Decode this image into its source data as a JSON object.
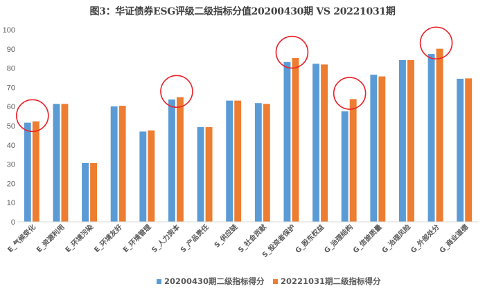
{
  "title": "图3：华证债券ESG评级二级指标分值20200430期 VS 20221031期",
  "colors": {
    "series1": "#5B9BD5",
    "series2": "#ED7D31",
    "highlight": "#E8232A",
    "axis": "#D9D9D9",
    "text": "#595959"
  },
  "legend": {
    "items": [
      {
        "label": "20200430期二级指标得分",
        "color": "#5B9BD5"
      },
      {
        "label": "20221031期二级指标得分",
        "color": "#ED7D31"
      }
    ]
  },
  "chart_data": {
    "type": "bar",
    "title": "图3：华证债券ESG评级二级指标分值20200430期 VS 20221031期",
    "xlabel": "",
    "ylabel": "",
    "ylim": [
      0,
      100
    ],
    "yticks": [
      0,
      10,
      20,
      30,
      40,
      50,
      60,
      70,
      80,
      90,
      100
    ],
    "grid": false,
    "legend_position": "bottom",
    "categories": [
      "E_气候变化",
      "E_资源利用",
      "E_环境污染",
      "E_环境友好",
      "E_环境管理",
      "S_人力资本",
      "S_产品责任",
      "S_供应链",
      "S_社会贡献",
      "S_投资者保护",
      "G_股东权益",
      "G_治理结构",
      "G_信披质量",
      "G_治理风险",
      "G_外部处分",
      "G_商业道德"
    ],
    "series": [
      {
        "name": "20200430期二级指标得分",
        "values": [
          51.7,
          61.5,
          30.7,
          60.2,
          47.1,
          63.8,
          49.4,
          63.2,
          61.9,
          83.3,
          82.4,
          57.6,
          76.7,
          84.3,
          87.5,
          74.6
        ]
      },
      {
        "name": "20221031期二级指标得分",
        "values": [
          52.4,
          61.5,
          30.7,
          60.5,
          47.7,
          65.0,
          49.4,
          63.2,
          61.5,
          85.4,
          82.0,
          64.0,
          75.8,
          84.3,
          90.2,
          74.8
        ]
      }
    ],
    "annotations": [
      {
        "type": "circle",
        "category": "E_气候变化"
      },
      {
        "type": "circle",
        "category": "S_人力资本"
      },
      {
        "type": "circle",
        "category": "S_投资者保护"
      },
      {
        "type": "circle",
        "category": "G_治理结构"
      },
      {
        "type": "circle",
        "category": "G_外部处分"
      }
    ]
  }
}
